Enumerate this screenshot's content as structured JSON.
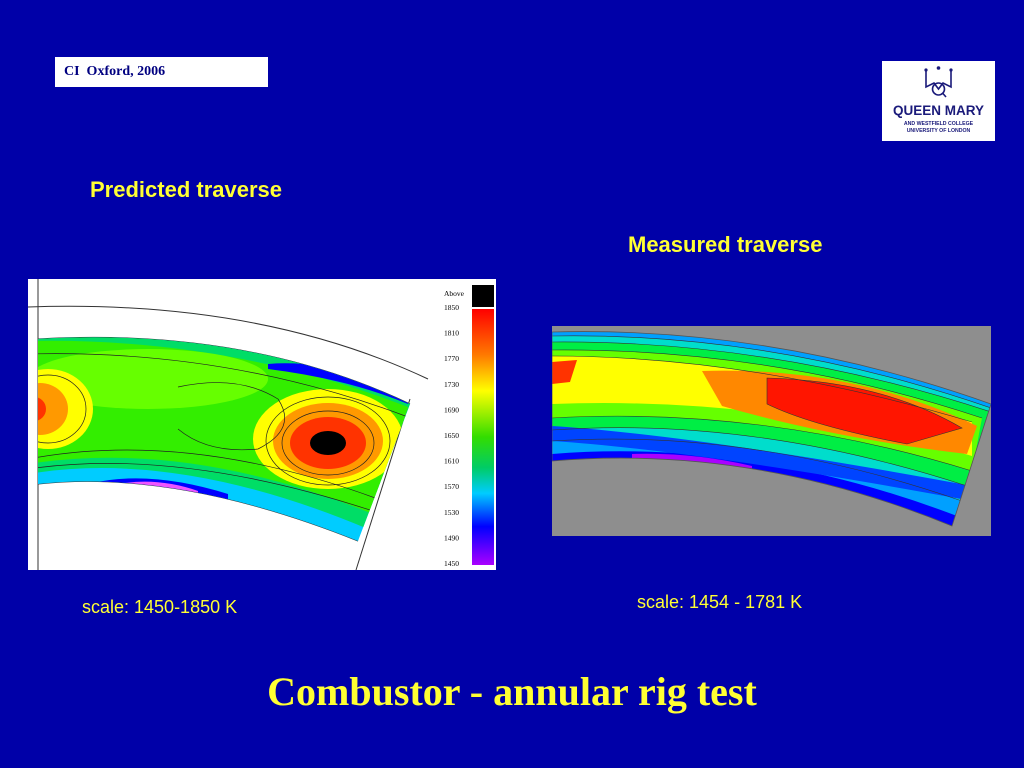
{
  "header": {
    "conference_tag": "CI  Oxford, 2006",
    "logo": {
      "name": "QUEEN MARY",
      "line2": "AND WESTFIELD COLLEGE",
      "line3": "UNIVERSITY OF LONDON",
      "icon": "crown-crest-icon"
    }
  },
  "predicted": {
    "heading": "Predicted traverse",
    "scale_caption": "scale: 1450-1850 K",
    "legend": {
      "above_label": "Above",
      "ticks": [
        "1850",
        "1810",
        "1770",
        "1730",
        "1690",
        "1650",
        "1610",
        "1570",
        "1530",
        "1490",
        "1450"
      ]
    }
  },
  "measured": {
    "heading": "Measured traverse",
    "scale_caption": "scale: 1454 - 1781 K"
  },
  "slide_title": "Combustor - annular rig test",
  "colors": {
    "background": "#0000a8",
    "text_accent": "#ffff33"
  }
}
